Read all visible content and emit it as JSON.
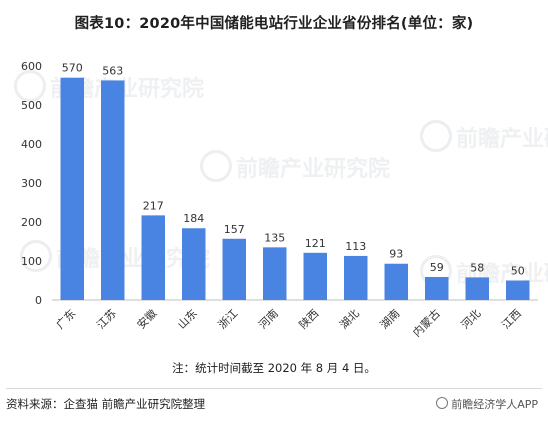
{
  "title": "图表10：2020年中国储能电站行业企业省份排名(单位：家)",
  "note": "注：统计时间截至 2020 年 8 月 4 日。",
  "source": "资料来源：企查猫 前瞻产业研究院整理",
  "brand": "前瞻经济学人APP",
  "watermark": "前瞻产业研究院",
  "colors": {
    "bar": "#4a84e2",
    "axis": "#bfbfbf",
    "grid": "#e6e6e6"
  },
  "chart_data": {
    "type": "bar",
    "title": "",
    "xlabel": "",
    "ylabel": "",
    "ylim": [
      0,
      600
    ],
    "yticks": [
      0,
      100,
      200,
      300,
      400,
      500,
      600
    ],
    "grid": false,
    "categories": [
      "广东",
      "江苏",
      "安徽",
      "山东",
      "浙江",
      "河南",
      "陕西",
      "湖北",
      "湖南",
      "内蒙古",
      "河北",
      "江西"
    ],
    "values": [
      570,
      563,
      217,
      184,
      157,
      135,
      121,
      113,
      93,
      59,
      58,
      50
    ],
    "data_labels": true
  }
}
